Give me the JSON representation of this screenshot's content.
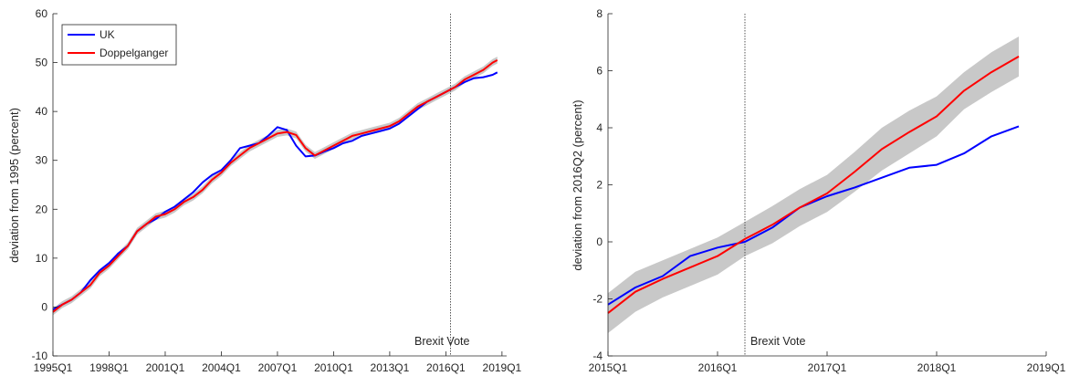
{
  "chart_data": [
    {
      "type": "line",
      "ylabel": "deviation from 1995 (percent)",
      "xlabel": "",
      "title": "",
      "xlim": [
        1995,
        2019.25
      ],
      "ylim": [
        -10,
        60
      ],
      "xticks": [
        1995,
        1998,
        2001,
        2004,
        2007,
        2010,
        2013,
        2016,
        2019
      ],
      "xtick_labels": [
        "1995Q1",
        "1998Q1",
        "2001Q1",
        "2004Q1",
        "2007Q1",
        "2010Q1",
        "2013Q1",
        "2016Q1",
        "2019Q1"
      ],
      "yticks": [
        -10,
        0,
        10,
        20,
        30,
        40,
        50,
        60
      ],
      "ytick_labels": [
        "-10",
        "0",
        "10",
        "20",
        "30",
        "40",
        "50",
        "60"
      ],
      "legend": {
        "position": "top-left",
        "entries": [
          "UK",
          "Doppelganger"
        ]
      },
      "vline": {
        "x": 2016.25,
        "label": "Brexit Vote"
      },
      "band_halfwidth": 0.7,
      "series": [
        {
          "name": "UK",
          "color": "#0000ff",
          "x": [
            1995,
            1995.5,
            1996,
            1996.5,
            1997,
            1997.5,
            1998,
            1998.5,
            1999,
            1999.5,
            2000,
            2000.5,
            2001,
            2001.5,
            2002,
            2002.5,
            2003,
            2003.5,
            2004,
            2004.5,
            2005,
            2005.5,
            2006,
            2006.5,
            2007,
            2007.5,
            2008,
            2008.5,
            2009,
            2009.5,
            2010,
            2010.5,
            2011,
            2011.5,
            2012,
            2012.5,
            2013,
            2013.5,
            2014,
            2014.5,
            2015,
            2015.5,
            2016,
            2016.5,
            2017,
            2017.5,
            2018,
            2018.5,
            2018.75
          ],
          "y": [
            -0.5,
            0.5,
            1.5,
            3,
            5.5,
            7.5,
            9,
            11,
            12.5,
            15.5,
            17,
            18,
            19.5,
            20.5,
            22,
            23.5,
            25.5,
            27,
            28,
            30,
            32.5,
            33,
            33.5,
            35,
            36.8,
            36.2,
            33,
            30.8,
            31,
            31.8,
            32.5,
            33.5,
            34,
            35,
            35.5,
            36,
            36.5,
            37.5,
            39,
            40.5,
            42,
            43,
            44,
            45,
            46,
            46.8,
            47,
            47.5,
            48
          ]
        },
        {
          "name": "Doppelganger",
          "color": "#ff0000",
          "x": [
            1995,
            1995.5,
            1996,
            1996.5,
            1997,
            1997.5,
            1998,
            1998.5,
            1999,
            1999.5,
            2000,
            2000.5,
            2001,
            2001.5,
            2002,
            2002.5,
            2003,
            2003.5,
            2004,
            2004.5,
            2005,
            2005.5,
            2006,
            2006.5,
            2007,
            2007.5,
            2008,
            2008.5,
            2009,
            2009.5,
            2010,
            2010.5,
            2011,
            2011.5,
            2012,
            2012.5,
            2013,
            2013.5,
            2014,
            2014.5,
            2015,
            2015.5,
            2016,
            2016.5,
            2017,
            2017.5,
            2018,
            2018.5,
            2018.75
          ],
          "y": [
            -1,
            0.5,
            1.5,
            3,
            4.5,
            7,
            8.5,
            10.5,
            12.5,
            15.5,
            17,
            18.5,
            19,
            20,
            21.5,
            22.5,
            24,
            26,
            27.5,
            29.5,
            31,
            32.5,
            33.5,
            34.5,
            35.5,
            35.8,
            35.2,
            32.5,
            31,
            32,
            33,
            34,
            35,
            35.5,
            36,
            36.5,
            37,
            38,
            39.5,
            41,
            42,
            43,
            44,
            45,
            46.5,
            47.5,
            48.5,
            50,
            50.5
          ]
        }
      ]
    },
    {
      "type": "line",
      "ylabel": "deviation from 2016Q2 (percent)",
      "xlabel": "",
      "title": "",
      "xlim": [
        2015,
        2019
      ],
      "ylim": [
        -4,
        8
      ],
      "xticks": [
        2015,
        2016,
        2017,
        2018,
        2019
      ],
      "xtick_labels": [
        "2015Q1",
        "2016Q1",
        "2017Q1",
        "2018Q1",
        "2019Q1"
      ],
      "yticks": [
        -4,
        -2,
        0,
        2,
        4,
        6,
        8
      ],
      "ytick_labels": [
        "-4",
        "-2",
        "0",
        "2",
        "4",
        "6",
        "8"
      ],
      "vline": {
        "x": 2016.25,
        "label": "Brexit Vote"
      },
      "series": [
        {
          "name": "UK",
          "color": "#0000ff",
          "x": [
            2015,
            2015.25,
            2015.5,
            2015.75,
            2016,
            2016.25,
            2016.5,
            2016.75,
            2017,
            2017.25,
            2017.5,
            2017.75,
            2018,
            2018.25,
            2018.5,
            2018.75
          ],
          "y": [
            -2.2,
            -1.6,
            -1.2,
            -0.5,
            -0.2,
            0,
            0.5,
            1.2,
            1.6,
            1.9,
            2.25,
            2.6,
            2.7,
            3.1,
            3.7,
            4.05
          ]
        },
        {
          "name": "Doppelganger",
          "color": "#ff0000",
          "x": [
            2015,
            2015.25,
            2015.5,
            2015.75,
            2016,
            2016.25,
            2016.5,
            2016.75,
            2017,
            2017.25,
            2017.5,
            2017.75,
            2018,
            2018.25,
            2018.5,
            2018.75
          ],
          "y": [
            -2.5,
            -1.75,
            -1.3,
            -0.9,
            -0.5,
            0.1,
            0.6,
            1.2,
            1.7,
            2.45,
            3.25,
            3.85,
            4.4,
            5.3,
            5.95,
            6.5
          ],
          "band_lower": [
            -3.2,
            -2.45,
            -1.95,
            -1.55,
            -1.15,
            -0.5,
            -0.05,
            0.55,
            1.05,
            1.75,
            2.5,
            3.1,
            3.7,
            4.65,
            5.25,
            5.8
          ],
          "band_upper": [
            -1.8,
            -1.05,
            -0.65,
            -0.25,
            0.15,
            0.7,
            1.25,
            1.85,
            2.35,
            3.15,
            4.0,
            4.6,
            5.1,
            5.95,
            6.65,
            7.2
          ]
        }
      ]
    }
  ]
}
